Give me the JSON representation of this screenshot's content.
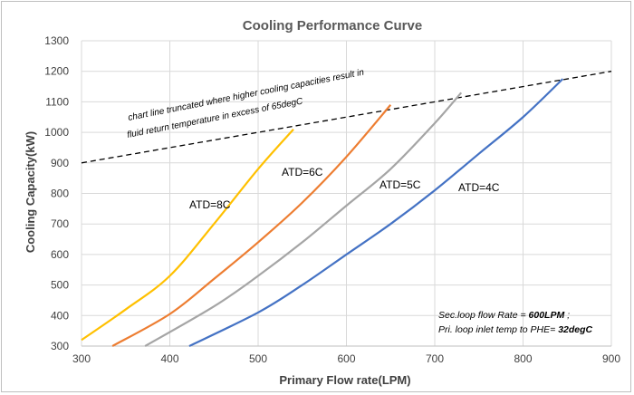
{
  "chart_data": {
    "type": "line",
    "title": "Cooling Performance Curve",
    "xlabel": "Primary Flow rate(LPM)",
    "ylabel": "Cooling Capacity(kW)",
    "xlim": [
      300,
      900
    ],
    "ylim": [
      300,
      1300
    ],
    "xticks": [
      300,
      400,
      500,
      600,
      700,
      800,
      900
    ],
    "yticks": [
      300,
      400,
      500,
      600,
      700,
      800,
      900,
      1000,
      1100,
      1200,
      1300
    ],
    "grid": true,
    "series": [
      {
        "name": "ATD=8C",
        "color": "#FFC000",
        "x": [
          300,
          350,
          400,
          450,
          500,
          540
        ],
        "y": [
          320,
          420,
          530,
          700,
          880,
          1010
        ]
      },
      {
        "name": "ATD=6C",
        "color": "#ED7D31",
        "x": [
          335,
          400,
          450,
          500,
          550,
          600,
          650
        ],
        "y": [
          300,
          405,
          520,
          640,
          770,
          920,
          1090
        ]
      },
      {
        "name": "ATD=5C",
        "color": "#A5A5A5",
        "x": [
          372,
          450,
          500,
          550,
          600,
          650,
          700,
          730
        ],
        "y": [
          300,
          430,
          530,
          640,
          760,
          880,
          1030,
          1130
        ]
      },
      {
        "name": "ATD=4C",
        "color": "#4472C4",
        "x": [
          422,
          500,
          550,
          600,
          650,
          700,
          750,
          800,
          845
        ],
        "y": [
          300,
          410,
          500,
          600,
          700,
          810,
          930,
          1050,
          1175
        ]
      }
    ],
    "reference_line": {
      "style": "dashed",
      "color": "#000000",
      "x": [
        300,
        900
      ],
      "y": [
        900,
        1200
      ]
    },
    "annotation": {
      "line1": "chart line truncated where higher cooling capacities result in",
      "line2": "fluid return temperature in excess of 65degC"
    },
    "note": {
      "line1_prefix": "Sec.loop flow Rate = ",
      "line1_value": "600LPM",
      "line1_suffix": " ;",
      "line2_prefix": "Pri. loop inlet temp to PHE= ",
      "line2_value": "32degC"
    },
    "colors": {
      "grid": "#d9d9d9",
      "axis": "#bfbfbf",
      "text": "#404040"
    }
  }
}
